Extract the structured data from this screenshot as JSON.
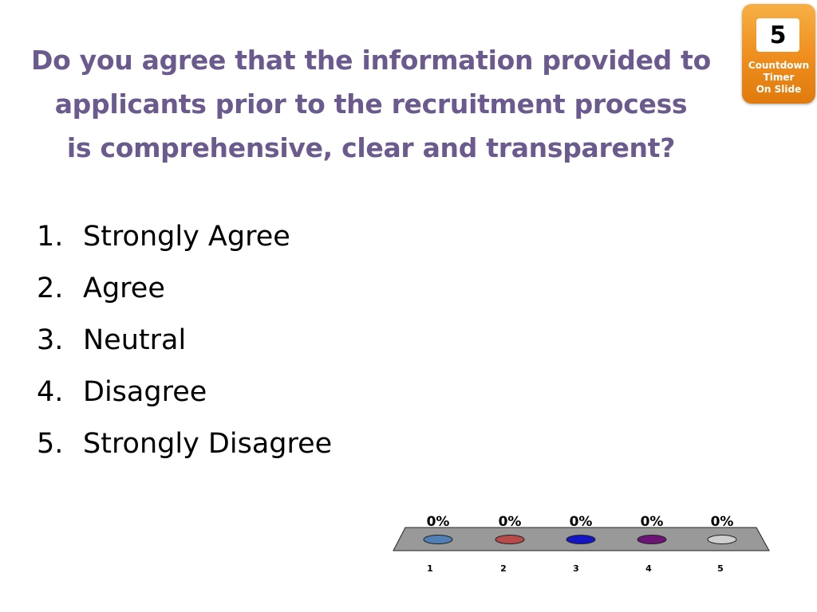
{
  "question": {
    "lines": [
      "Do you agree that the information provided to",
      "applicants prior to the recruitment process",
      "is comprehensive, clear and transparent?"
    ]
  },
  "countdown": {
    "value": "5",
    "lines": [
      "Countdown",
      "Timer",
      "On Slide"
    ]
  },
  "options": [
    {
      "number": "1.",
      "label": "Strongly Agree"
    },
    {
      "number": "2.",
      "label": "Agree"
    },
    {
      "number": "3.",
      "label": "Neutral"
    },
    {
      "number": "4.",
      "label": "Disagree"
    },
    {
      "number": "5.",
      "label": "Strongly Disagree"
    }
  ],
  "chart_data": {
    "type": "bar",
    "categories": [
      "1",
      "2",
      "3",
      "4",
      "5"
    ],
    "values": [
      0,
      0,
      0,
      0,
      0
    ],
    "data_labels": [
      "0%",
      "0%",
      "0%",
      "0%",
      "0%"
    ],
    "colors": [
      "#4f7fb5",
      "#b84a4a",
      "#1515c8",
      "#6c1577",
      "#cfcfcf"
    ],
    "platform_color": "#999999"
  }
}
